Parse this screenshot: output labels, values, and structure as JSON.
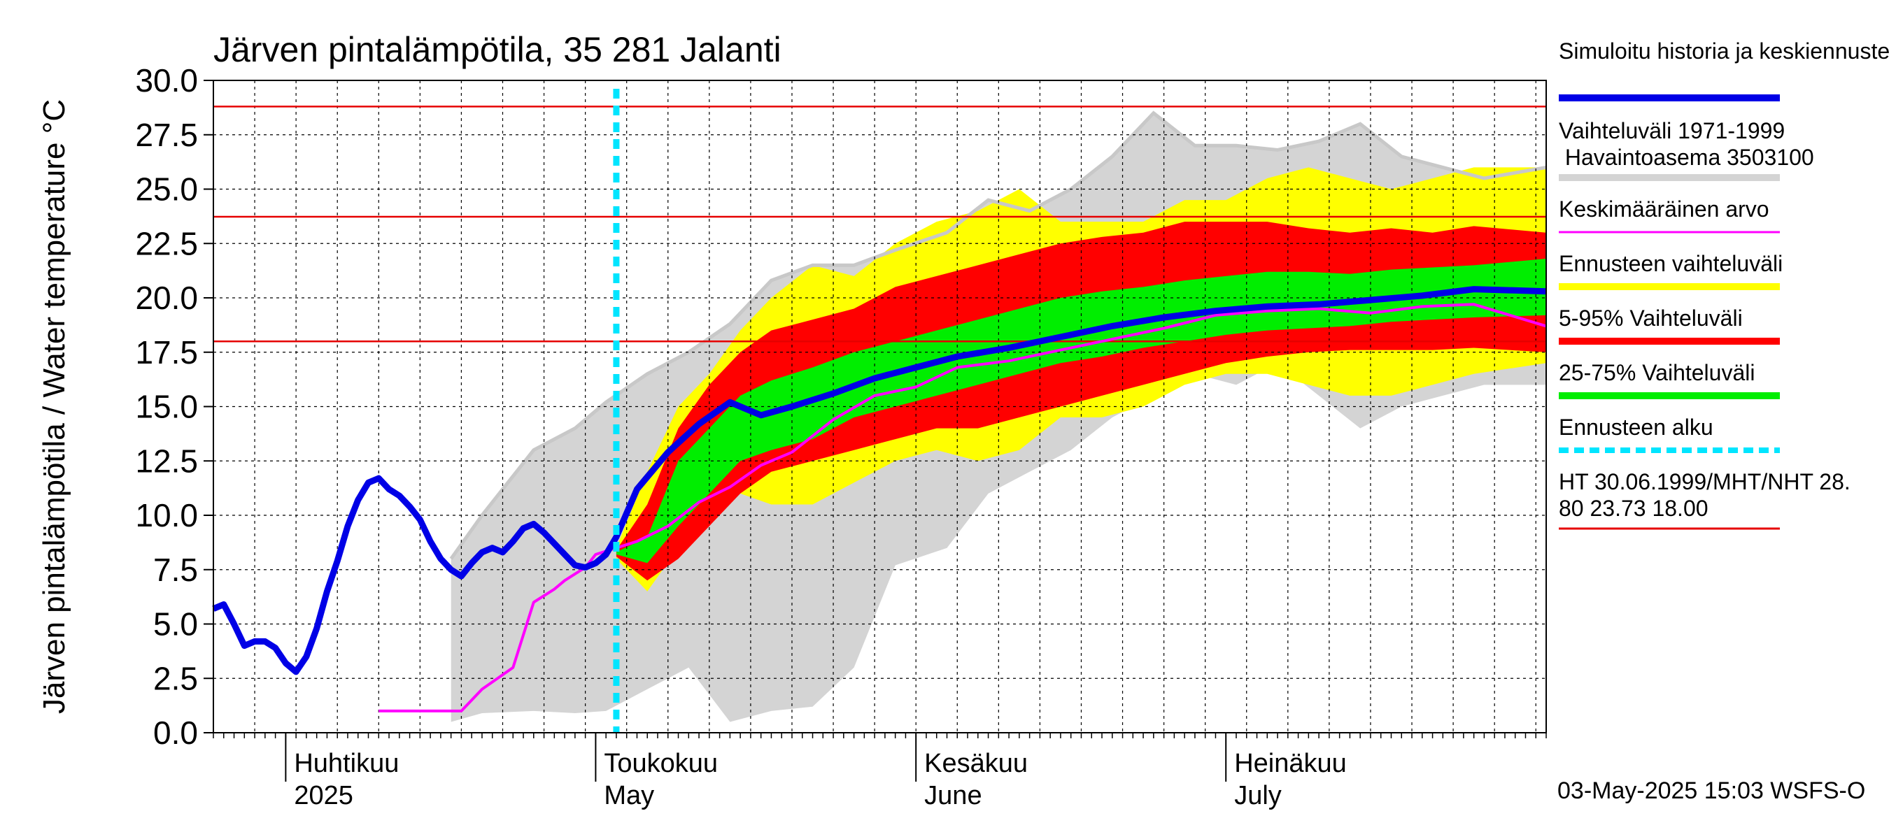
{
  "chart_data": {
    "type": "area",
    "title": "Järven pintalämpötila, 35 281 Jalanti",
    "ylabel": "Järven pintalämpötila / Water temperature °C",
    "ylim": [
      0,
      30
    ],
    "xlim": [
      "2025-03-25",
      "2025-08-01"
    ],
    "yticks": [
      "0.0",
      "2.5",
      "5.0",
      "7.5",
      "10.0",
      "12.5",
      "15.0",
      "17.5",
      "20.0",
      "22.5",
      "25.0",
      "27.5",
      "30.0"
    ],
    "month_labels": [
      {
        "fi": "Huhtikuu",
        "en": "2025",
        "date": "2025-04-01"
      },
      {
        "fi": "Toukokuu",
        "en": "May",
        "date": "2025-05-01"
      },
      {
        "fi": "Kesäkuu",
        "en": "June",
        "date": "2025-06-01"
      },
      {
        "fi": "Heinäkuu",
        "en": "July",
        "date": "2025-07-01"
      }
    ],
    "grid": true,
    "forecast_start": "2025-05-03",
    "reference_lines": {
      "HT": 28.8,
      "MHT": 23.73,
      "NHT": 18.0
    },
    "colors": {
      "simulated": "#0000e6",
      "hist_range": "#d4d4d4",
      "hist_line": "#d4d4d4",
      "mean": "#ff00ff",
      "forecast_range": "#ffff00",
      "p5_95": "#ff0000",
      "p25_75": "#00ee00",
      "forecast_start": "#00e5ff",
      "reference": "#e60000"
    },
    "legend": [
      {
        "label": "Simuloitu historia ja keskiennuste",
        "key": "simulated",
        "style": "thick"
      },
      {
        "label": "Vaihteluväli 1971-1999\n Havaintoasema 3503100",
        "key": "hist_range",
        "style": "thick"
      },
      {
        "label": "Keskimääräinen arvo",
        "key": "mean",
        "style": "thin"
      },
      {
        "label": "Ennusteen vaihteluväli",
        "key": "forecast_range",
        "style": "thick"
      },
      {
        "label": "5-95% Vaihteluväli",
        "key": "p5_95",
        "style": "thick"
      },
      {
        "label": "25-75% Vaihteluväli",
        "key": "p25_75",
        "style": "thick"
      },
      {
        "label": "Ennusteen alku",
        "key": "forecast_start",
        "style": "dashed"
      },
      {
        "label": "HT 30.06.1999/MHT/NHT 28.\n80 23.73 18.00",
        "key": "reference",
        "style": "thin"
      }
    ],
    "footer": "03-May-2025 15:03 WSFS-O",
    "series": [
      {
        "key": "simulated",
        "x": [
          "2025-03-25",
          "2025-03-26",
          "2025-03-27",
          "2025-03-28",
          "2025-03-29",
          "2025-03-30",
          "2025-03-31",
          "2025-04-01",
          "2025-04-02",
          "2025-04-03",
          "2025-04-04",
          "2025-04-05",
          "2025-04-06",
          "2025-04-07",
          "2025-04-08",
          "2025-04-09",
          "2025-04-10",
          "2025-04-11",
          "2025-04-12",
          "2025-04-13",
          "2025-04-14",
          "2025-04-15",
          "2025-04-16",
          "2025-04-17",
          "2025-04-18",
          "2025-04-19",
          "2025-04-20",
          "2025-04-21",
          "2025-04-22",
          "2025-04-23",
          "2025-04-24",
          "2025-04-25",
          "2025-04-26",
          "2025-04-27",
          "2025-04-28",
          "2025-04-29",
          "2025-04-30",
          "2025-05-01",
          "2025-05-02",
          "2025-05-03",
          "2025-05-05",
          "2025-05-08",
          "2025-05-11",
          "2025-05-14",
          "2025-05-17",
          "2025-05-20",
          "2025-05-24",
          "2025-05-28",
          "2025-06-01",
          "2025-06-05",
          "2025-06-10",
          "2025-06-15",
          "2025-06-20",
          "2025-06-25",
          "2025-06-30",
          "2025-07-05",
          "2025-07-10",
          "2025-07-15",
          "2025-07-20",
          "2025-07-25",
          "2025-08-01"
        ],
        "values": [
          5.7,
          5.9,
          5.0,
          4.0,
          4.2,
          4.2,
          3.9,
          3.2,
          2.8,
          3.5,
          4.8,
          6.5,
          7.9,
          9.5,
          10.7,
          11.5,
          11.7,
          11.2,
          10.9,
          10.4,
          9.8,
          8.8,
          8.0,
          7.5,
          7.2,
          7.8,
          8.3,
          8.5,
          8.3,
          8.8,
          9.4,
          9.6,
          9.2,
          8.7,
          8.2,
          7.7,
          7.6,
          7.8,
          8.2,
          9.0,
          11.2,
          12.9,
          14.2,
          15.2,
          14.6,
          15.0,
          15.6,
          16.3,
          16.8,
          17.3,
          17.7,
          18.2,
          18.7,
          19.1,
          19.4,
          19.6,
          19.7,
          19.9,
          20.1,
          20.4,
          20.3
        ]
      },
      {
        "key": "mean",
        "x": [
          "2025-04-10",
          "2025-04-18",
          "2025-04-20",
          "2025-04-23",
          "2025-04-25",
          "2025-04-27",
          "2025-04-28",
          "2025-04-30",
          "2025-05-01",
          "2025-05-03",
          "2025-05-05",
          "2025-05-08",
          "2025-05-11",
          "2025-05-14",
          "2025-05-17",
          "2025-05-20",
          "2025-05-24",
          "2025-05-28",
          "2025-06-01",
          "2025-06-05",
          "2025-06-10",
          "2025-06-15",
          "2025-06-20",
          "2025-06-25",
          "2025-06-30",
          "2025-07-05",
          "2025-07-10",
          "2025-07-15",
          "2025-07-20",
          "2025-07-25",
          "2025-08-01"
        ],
        "values": [
          1.0,
          1.0,
          2.0,
          3.0,
          6.0,
          6.6,
          7.0,
          7.6,
          8.2,
          8.5,
          8.8,
          9.5,
          10.6,
          11.3,
          12.3,
          12.9,
          14.4,
          15.5,
          15.9,
          16.8,
          17.1,
          17.6,
          18.1,
          18.6,
          19.2,
          19.4,
          19.5,
          19.3,
          19.6,
          19.7,
          18.7
        ]
      }
    ],
    "bands": [
      {
        "key": "hist_range",
        "x": [
          "2025-04-17",
          "2025-04-20",
          "2025-04-25",
          "2025-04-29",
          "2025-05-02",
          "2025-05-06",
          "2025-05-10",
          "2025-05-14",
          "2025-05-18",
          "2025-05-22",
          "2025-05-26",
          "2025-05-30",
          "2025-06-04",
          "2025-06-08",
          "2025-06-12",
          "2025-06-16",
          "2025-06-20",
          "2025-06-24",
          "2025-06-28",
          "2025-07-02",
          "2025-07-06",
          "2025-07-10",
          "2025-07-14",
          "2025-07-18",
          "2025-07-22",
          "2025-07-26",
          "2025-08-01"
        ],
        "low": [
          0.5,
          0.9,
          1.0,
          0.9,
          1.0,
          2.0,
          3.0,
          0.5,
          1.0,
          1.2,
          3.0,
          7.7,
          8.5,
          11.0,
          12.0,
          13.0,
          14.5,
          15.5,
          16.5,
          16.0,
          17.0,
          15.5,
          14.0,
          15.0,
          15.5,
          16.0,
          16.0
        ],
        "high": [
          8.0,
          10.0,
          13.0,
          14.0,
          15.2,
          16.5,
          17.5,
          18.8,
          20.8,
          21.5,
          21.5,
          22.2,
          23.0,
          24.5,
          24.0,
          25.0,
          26.5,
          28.5,
          27.0,
          27.0,
          26.8,
          27.2,
          28.0,
          26.5,
          26.0,
          25.5,
          26.0
        ]
      },
      {
        "key": "forecast_range",
        "x": [
          "2025-05-03",
          "2025-05-06",
          "2025-05-09",
          "2025-05-12",
          "2025-05-15",
          "2025-05-18",
          "2025-05-22",
          "2025-05-26",
          "2025-05-30",
          "2025-06-03",
          "2025-06-07",
          "2025-06-11",
          "2025-06-15",
          "2025-06-19",
          "2025-06-23",
          "2025-06-27",
          "2025-07-01",
          "2025-07-05",
          "2025-07-09",
          "2025-07-13",
          "2025-07-17",
          "2025-07-21",
          "2025-07-25",
          "2025-08-01"
        ],
        "low": [
          8.0,
          6.5,
          8.5,
          10.5,
          11.0,
          10.5,
          10.5,
          11.5,
          12.5,
          13.0,
          12.5,
          13.0,
          14.5,
          14.5,
          15.0,
          16.0,
          16.5,
          16.5,
          16.0,
          15.5,
          15.5,
          16.0,
          16.5,
          17.0
        ],
        "high": [
          8.5,
          12.0,
          15.0,
          16.5,
          18.5,
          20.0,
          21.5,
          21.0,
          22.5,
          23.5,
          24.0,
          25.0,
          23.5,
          23.5,
          23.5,
          24.5,
          24.5,
          25.5,
          26.0,
          25.5,
          25.0,
          25.5,
          26.0,
          26.0
        ]
      },
      {
        "key": "p5_95",
        "x": [
          "2025-05-03",
          "2025-05-06",
          "2025-05-09",
          "2025-05-12",
          "2025-05-15",
          "2025-05-18",
          "2025-05-22",
          "2025-05-26",
          "2025-05-30",
          "2025-06-03",
          "2025-06-07",
          "2025-06-11",
          "2025-06-15",
          "2025-06-19",
          "2025-06-23",
          "2025-06-27",
          "2025-07-01",
          "2025-07-05",
          "2025-07-09",
          "2025-07-13",
          "2025-07-17",
          "2025-07-21",
          "2025-07-25",
          "2025-08-01"
        ],
        "low": [
          8.1,
          7.0,
          8.0,
          9.5,
          11.0,
          12.0,
          12.5,
          13.0,
          13.5,
          14.0,
          14.0,
          14.5,
          15.0,
          15.5,
          16.0,
          16.5,
          17.0,
          17.3,
          17.5,
          17.6,
          17.6,
          17.6,
          17.7,
          17.5
        ],
        "high": [
          8.4,
          10.5,
          14.0,
          16.0,
          17.5,
          18.5,
          19.0,
          19.5,
          20.5,
          21.0,
          21.5,
          22.0,
          22.5,
          22.8,
          23.0,
          23.5,
          23.5,
          23.5,
          23.2,
          23.0,
          23.2,
          23.0,
          23.3,
          23.0
        ]
      },
      {
        "key": "p25_75",
        "x": [
          "2025-05-03",
          "2025-05-06",
          "2025-05-09",
          "2025-05-12",
          "2025-05-15",
          "2025-05-18",
          "2025-05-22",
          "2025-05-26",
          "2025-05-30",
          "2025-06-03",
          "2025-06-07",
          "2025-06-11",
          "2025-06-15",
          "2025-06-19",
          "2025-06-23",
          "2025-06-27",
          "2025-07-01",
          "2025-07-05",
          "2025-07-09",
          "2025-07-13",
          "2025-07-17",
          "2025-07-21",
          "2025-07-25",
          "2025-08-01"
        ],
        "low": [
          8.2,
          7.8,
          9.5,
          11.0,
          12.5,
          13.0,
          13.5,
          14.5,
          15.0,
          15.5,
          16.0,
          16.5,
          17.0,
          17.3,
          17.7,
          18.0,
          18.3,
          18.5,
          18.6,
          18.7,
          18.9,
          19.0,
          19.1,
          19.2
        ],
        "high": [
          8.3,
          9.0,
          12.5,
          14.0,
          15.5,
          16.2,
          16.8,
          17.5,
          18.0,
          18.5,
          19.0,
          19.5,
          20.0,
          20.3,
          20.5,
          20.8,
          21.0,
          21.2,
          21.2,
          21.1,
          21.3,
          21.4,
          21.5,
          21.8
        ]
      }
    ]
  }
}
